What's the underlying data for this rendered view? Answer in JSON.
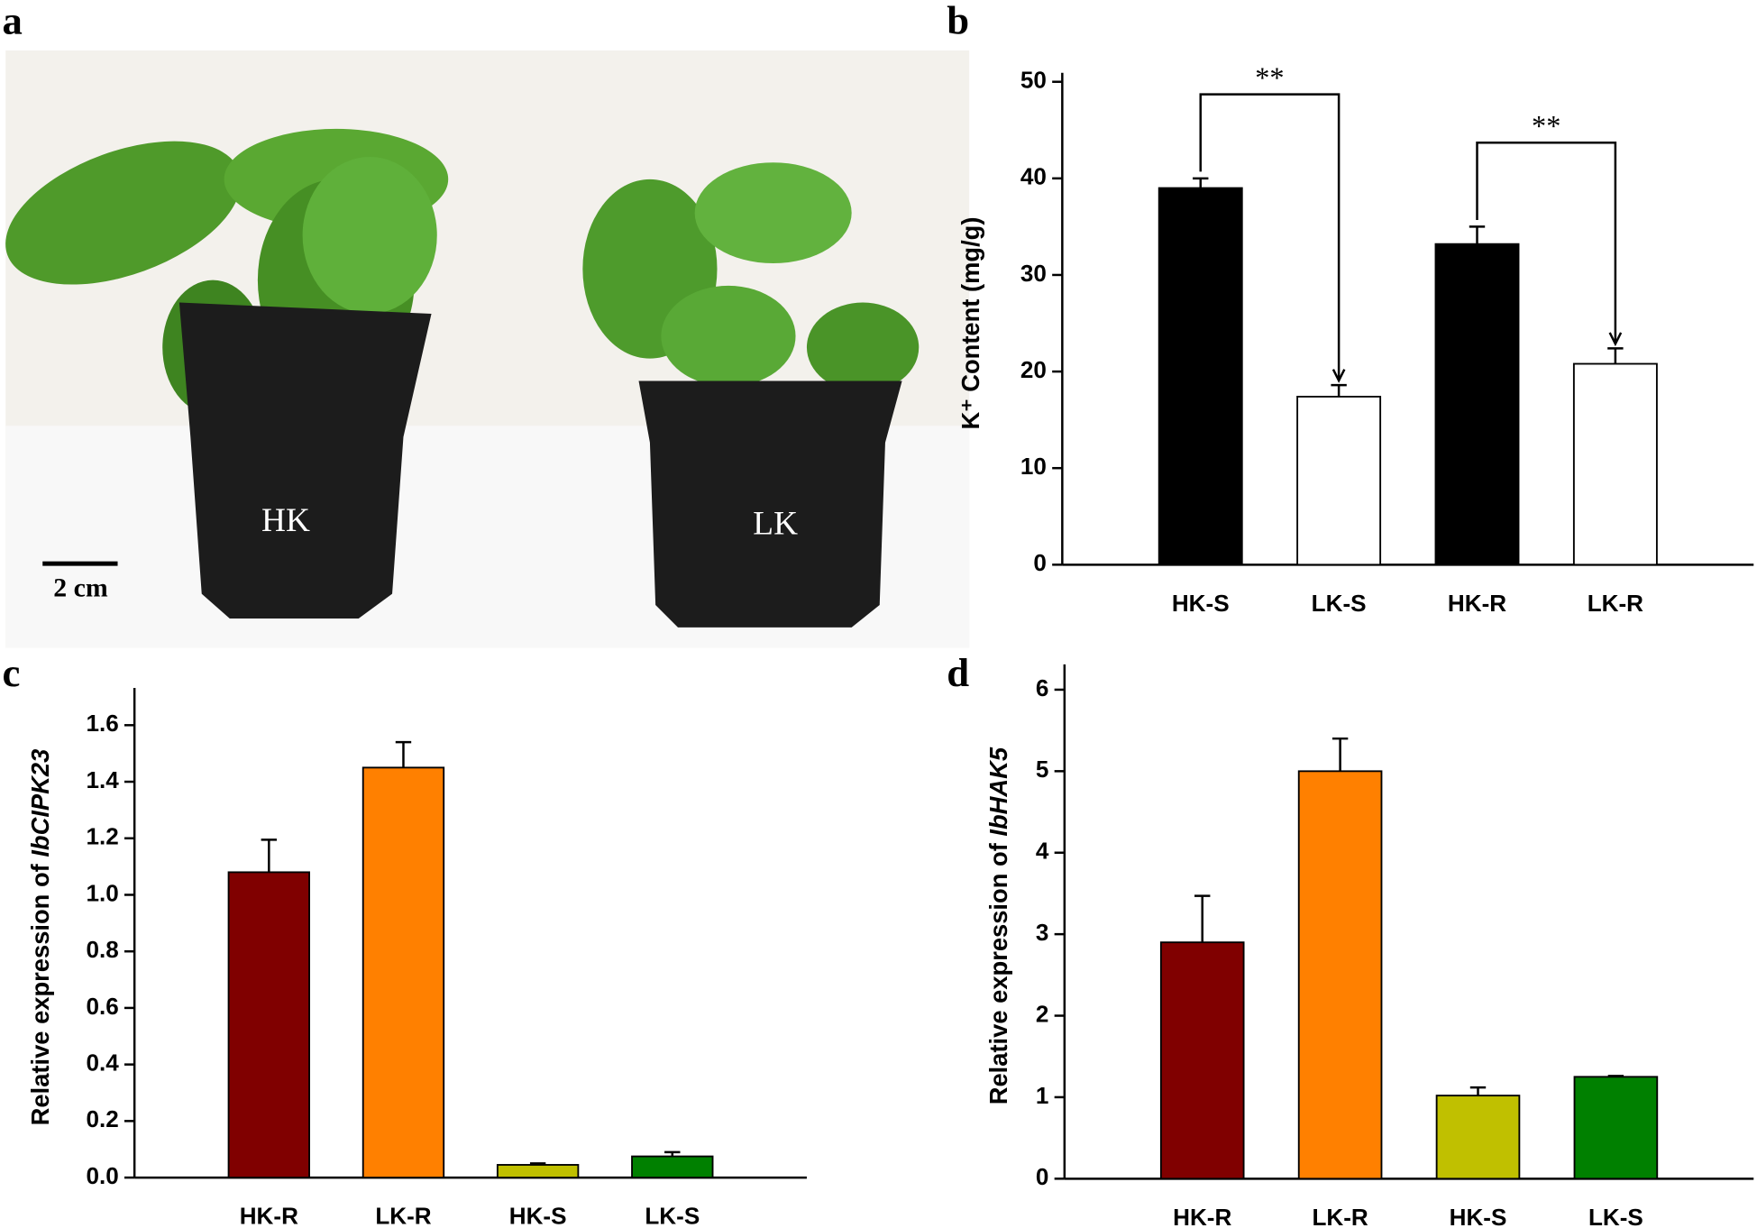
{
  "panel_labels": [
    "a",
    "b",
    "c",
    "d"
  ],
  "photo": {
    "left_label": "HK",
    "right_label": "LK",
    "scale_bar": "2 cm"
  },
  "chart_data": [
    {
      "type": "bar",
      "ylabel": "K⁺ Content (mg/g)",
      "ylabel_italic": null,
      "categories": [
        "HK-S",
        "LK-S",
        "HK-R",
        "LK-R"
      ],
      "values": [
        39,
        17.4,
        33.2,
        20.8
      ],
      "errors": [
        1,
        1.2,
        1.8,
        1.6
      ],
      "colors": [
        "#000000",
        "#ffffff",
        "#000000",
        "#ffffff"
      ],
      "ylim": [
        0,
        50
      ],
      "yticks": [
        0,
        10,
        20,
        30,
        40,
        50
      ],
      "comparisons": [
        {
          "label": "**",
          "between": [
            "HK-S",
            "LK-S"
          ]
        },
        {
          "label": "**",
          "between": [
            "HK-R",
            "LK-R"
          ]
        }
      ]
    },
    {
      "type": "bar",
      "ylabel": "Relative expression of ",
      "ylabel_italic": "IbCIPK23",
      "categories": [
        "HK-R",
        "LK-R",
        "HK-S",
        "LK-S"
      ],
      "values": [
        1.08,
        1.45,
        0.045,
        0.075
      ],
      "errors": [
        0.115,
        0.09,
        0.005,
        0.015
      ],
      "colors": [
        "#800000",
        "#ff8000",
        "#c0c000",
        "#008000"
      ],
      "ylim": [
        0,
        1.7
      ],
      "yticks": [
        {
          "value": 0,
          "label": "0.0"
        },
        0.2,
        0.4,
        0.6,
        0.8,
        {
          "value": 1,
          "label": "1.0"
        },
        1.2,
        1.4,
        1.6
      ]
    },
    {
      "type": "bar",
      "ylabel": "Relative expression of ",
      "ylabel_italic": "IbHAK5",
      "categories": [
        "HK-R",
        "LK-R",
        "HK-S",
        "LK-S"
      ],
      "values": [
        2.9,
        5.0,
        1.02,
        1.25
      ],
      "errors": [
        0.57,
        0.4,
        0.1,
        0.01
      ],
      "colors": [
        "#800000",
        "#ff8000",
        "#c0c000",
        "#008000"
      ],
      "ylim": [
        0,
        6.2
      ],
      "yticks": [
        0,
        1,
        2,
        3,
        4,
        5,
        6
      ]
    }
  ]
}
